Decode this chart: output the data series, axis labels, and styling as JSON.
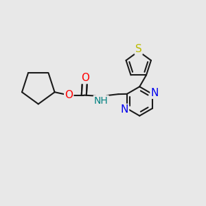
{
  "background_color": "#e8e8e8",
  "bond_color": "#1a1a1a",
  "bond_width": 1.5,
  "atom_colors": {
    "O": "#ff0000",
    "N": "#0000ee",
    "S": "#bbbb00",
    "NH_color": "#008080",
    "C": "#1a1a1a"
  },
  "font_size": 10,
  "fig_size": [
    3.0,
    3.0
  ],
  "dpi": 100,
  "xlim": [
    0,
    10
  ],
  "ylim": [
    0,
    10
  ]
}
